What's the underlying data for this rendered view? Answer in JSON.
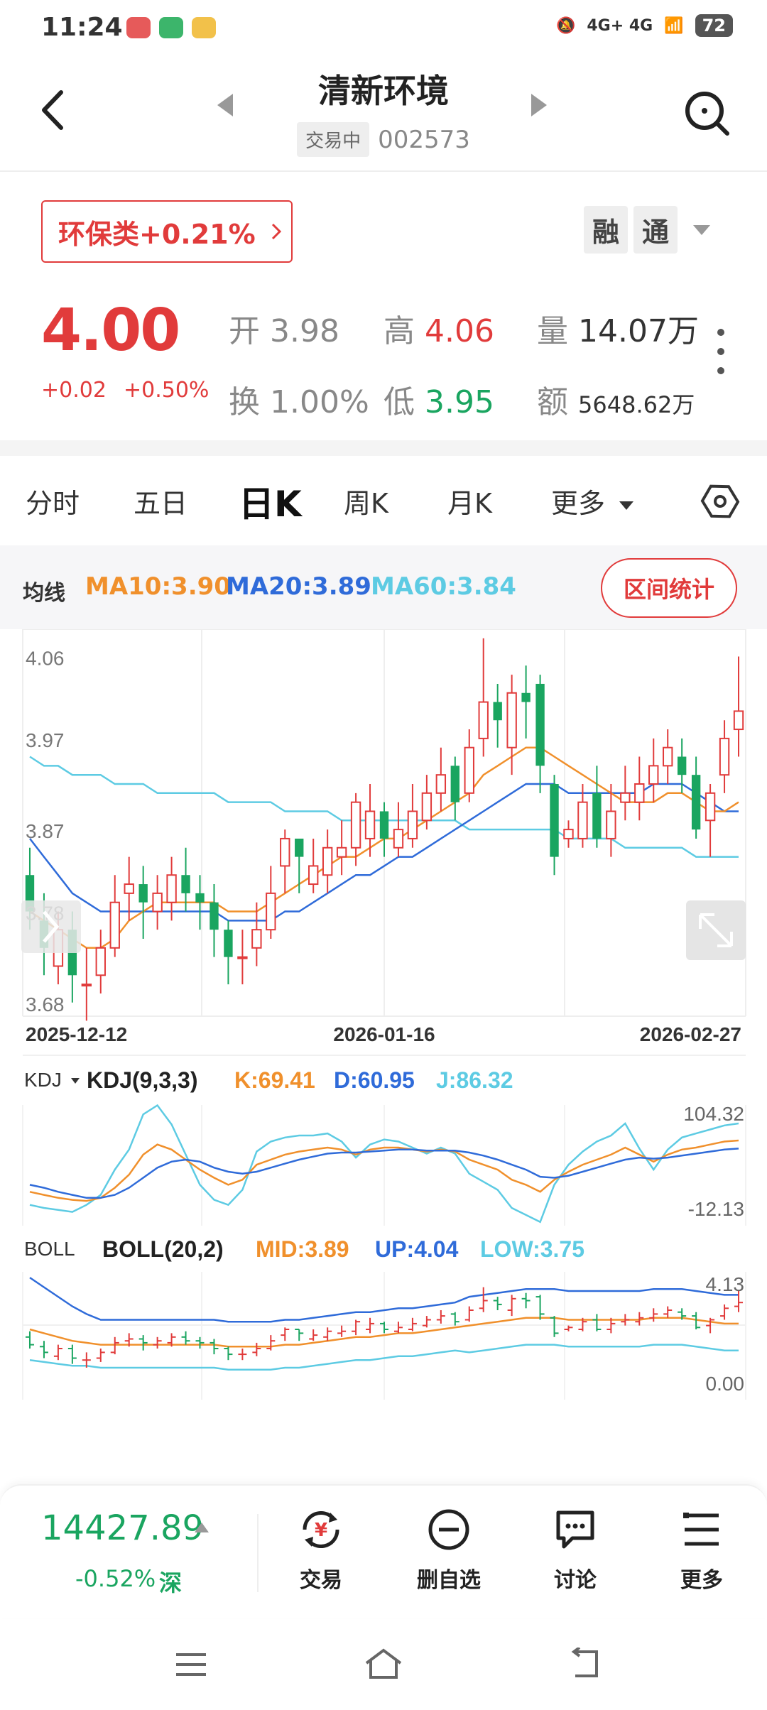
{
  "status": {
    "time": "11:24",
    "network": "4G+ 4G",
    "battery": "72"
  },
  "header": {
    "title": "清新环境",
    "badge": "交易中",
    "code": "002573"
  },
  "sector": {
    "label": "环保类+0.21%"
  },
  "badges": {
    "rong": "融",
    "tong": "通"
  },
  "quote": {
    "price": "4.00",
    "change": "+0.02",
    "change_pct": "+0.50%",
    "open_label": "开",
    "open": "3.98",
    "high_label": "高",
    "high": "4.06",
    "vol_label": "量",
    "volume": "14.07万",
    "turnover_label": "换",
    "turnover": "1.00%",
    "low_label": "低",
    "low": "3.95",
    "amt_label": "额",
    "amount": "5648.62万"
  },
  "tabs": [
    "分时",
    "五日",
    "日K",
    "周K",
    "月K",
    "更多"
  ],
  "ma": {
    "label": "均线",
    "ma10": "MA10:3.90",
    "ma20": "MA20:3.89",
    "ma60": "MA60:3.84",
    "interval_button": "区间统计"
  },
  "chart_data": {
    "type": "candlestick",
    "price_ticks": [
      "4.06",
      "3.97",
      "3.87",
      "3.78",
      "3.68"
    ],
    "dates": [
      "2025-12-12",
      "2026-01-16",
      "2026-02-27"
    ],
    "candles": [
      [
        3.82,
        3.78,
        3.85,
        3.76
      ],
      [
        3.77,
        3.74,
        3.8,
        3.71
      ],
      [
        3.72,
        3.76,
        3.78,
        3.7
      ],
      [
        3.76,
        3.71,
        3.78,
        3.68
      ],
      [
        3.7,
        3.7,
        3.74,
        3.66
      ],
      [
        3.71,
        3.74,
        3.76,
        3.69
      ],
      [
        3.74,
        3.79,
        3.82,
        3.73
      ],
      [
        3.8,
        3.81,
        3.84,
        3.77
      ],
      [
        3.81,
        3.79,
        3.83,
        3.75
      ],
      [
        3.78,
        3.8,
        3.82,
        3.76
      ],
      [
        3.79,
        3.82,
        3.84,
        3.77
      ],
      [
        3.82,
        3.8,
        3.85,
        3.78
      ],
      [
        3.8,
        3.79,
        3.82,
        3.76
      ],
      [
        3.79,
        3.76,
        3.81,
        3.73
      ],
      [
        3.76,
        3.73,
        3.77,
        3.7
      ],
      [
        3.73,
        3.73,
        3.76,
        3.7
      ],
      [
        3.74,
        3.76,
        3.79,
        3.72
      ],
      [
        3.76,
        3.8,
        3.83,
        3.75
      ],
      [
        3.83,
        3.86,
        3.87,
        3.8
      ],
      [
        3.86,
        3.84,
        3.86,
        3.8
      ],
      [
        3.81,
        3.83,
        3.86,
        3.8
      ],
      [
        3.82,
        3.85,
        3.87,
        3.8
      ],
      [
        3.84,
        3.85,
        3.88,
        3.82
      ],
      [
        3.85,
        3.9,
        3.91,
        3.83
      ],
      [
        3.86,
        3.89,
        3.92,
        3.84
      ],
      [
        3.89,
        3.86,
        3.9,
        3.84
      ],
      [
        3.85,
        3.87,
        3.9,
        3.84
      ],
      [
        3.86,
        3.89,
        3.92,
        3.85
      ],
      [
        3.88,
        3.91,
        3.93,
        3.87
      ],
      [
        3.91,
        3.93,
        3.96,
        3.89
      ],
      [
        3.94,
        3.9,
        3.95,
        3.88
      ],
      [
        3.91,
        3.96,
        3.98,
        3.9
      ],
      [
        3.97,
        4.01,
        4.08,
        3.95
      ],
      [
        4.01,
        3.99,
        4.03,
        3.96
      ],
      [
        3.96,
        4.02,
        4.04,
        3.93
      ],
      [
        4.02,
        4.01,
        4.05,
        3.97
      ],
      [
        4.03,
        3.94,
        4.04,
        3.91
      ],
      [
        3.92,
        3.84,
        3.93,
        3.82
      ],
      [
        3.86,
        3.87,
        3.88,
        3.85
      ],
      [
        3.86,
        3.9,
        3.92,
        3.85
      ],
      [
        3.91,
        3.86,
        3.94,
        3.85
      ],
      [
        3.86,
        3.89,
        3.92,
        3.84
      ],
      [
        3.9,
        3.91,
        3.94,
        3.88
      ],
      [
        3.9,
        3.92,
        3.95,
        3.88
      ],
      [
        3.92,
        3.94,
        3.97,
        3.9
      ],
      [
        3.94,
        3.96,
        3.98,
        3.92
      ],
      [
        3.95,
        3.93,
        3.97,
        3.91
      ],
      [
        3.93,
        3.87,
        3.95,
        3.86
      ],
      [
        3.88,
        3.91,
        3.92,
        3.84
      ],
      [
        3.93,
        3.97,
        3.99,
        3.91
      ],
      [
        3.98,
        4.0,
        4.06,
        3.95
      ]
    ],
    "ma10": [
      3.78,
      3.77,
      3.76,
      3.75,
      3.74,
      3.74,
      3.75,
      3.77,
      3.78,
      3.79,
      3.79,
      3.79,
      3.79,
      3.79,
      3.78,
      3.78,
      3.78,
      3.79,
      3.8,
      3.81,
      3.82,
      3.83,
      3.84,
      3.84,
      3.85,
      3.86,
      3.86,
      3.87,
      3.88,
      3.89,
      3.9,
      3.91,
      3.93,
      3.94,
      3.95,
      3.96,
      3.96,
      3.95,
      3.94,
      3.93,
      3.92,
      3.91,
      3.9,
      3.9,
      3.9,
      3.91,
      3.91,
      3.9,
      3.89,
      3.89,
      3.9
    ],
    "ma20": [
      3.86,
      3.84,
      3.82,
      3.8,
      3.79,
      3.78,
      3.78,
      3.78,
      3.78,
      3.78,
      3.78,
      3.78,
      3.78,
      3.78,
      3.77,
      3.77,
      3.77,
      3.77,
      3.78,
      3.78,
      3.79,
      3.8,
      3.81,
      3.82,
      3.82,
      3.83,
      3.84,
      3.84,
      3.85,
      3.86,
      3.87,
      3.88,
      3.89,
      3.9,
      3.91,
      3.92,
      3.92,
      3.92,
      3.91,
      3.91,
      3.91,
      3.91,
      3.91,
      3.91,
      3.92,
      3.92,
      3.92,
      3.91,
      3.9,
      3.89,
      3.89
    ],
    "ma60": [
      3.95,
      3.94,
      3.94,
      3.93,
      3.93,
      3.93,
      3.92,
      3.92,
      3.92,
      3.91,
      3.91,
      3.91,
      3.91,
      3.91,
      3.9,
      3.9,
      3.9,
      3.9,
      3.89,
      3.89,
      3.89,
      3.89,
      3.88,
      3.88,
      3.88,
      3.88,
      3.88,
      3.88,
      3.88,
      3.88,
      3.88,
      3.87,
      3.87,
      3.87,
      3.87,
      3.87,
      3.87,
      3.87,
      3.86,
      3.86,
      3.86,
      3.86,
      3.85,
      3.85,
      3.85,
      3.85,
      3.85,
      3.84,
      3.84,
      3.84,
      3.84
    ]
  },
  "kdj": {
    "selector": "KDJ",
    "name": "KDJ(9,3,3)",
    "k": "K:69.41",
    "d": "D:60.95",
    "j": "J:86.32",
    "top": "104.32",
    "bottom": "-12.13",
    "k_values": [
      18,
      15,
      12,
      10,
      9,
      12,
      22,
      35,
      55,
      65,
      60,
      50,
      40,
      32,
      25,
      30,
      45,
      50,
      55,
      58,
      60,
      62,
      60,
      55,
      60,
      62,
      62,
      60,
      58,
      60,
      58,
      50,
      45,
      40,
      30,
      25,
      18,
      30,
      38,
      45,
      50,
      55,
      62,
      55,
      48,
      55,
      60,
      62,
      65,
      68,
      69
    ],
    "d_values": [
      25,
      22,
      18,
      15,
      12,
      12,
      15,
      22,
      32,
      42,
      48,
      50,
      48,
      42,
      38,
      36,
      38,
      42,
      46,
      50,
      53,
      56,
      57,
      57,
      58,
      59,
      60,
      60,
      59,
      59,
      59,
      57,
      54,
      50,
      45,
      40,
      33,
      32,
      34,
      38,
      42,
      46,
      50,
      52,
      51,
      52,
      54,
      56,
      58,
      60,
      61
    ],
    "j_values": [
      5,
      2,
      0,
      -2,
      5,
      15,
      40,
      60,
      95,
      104,
      85,
      55,
      25,
      10,
      5,
      20,
      58,
      68,
      72,
      74,
      74,
      76,
      68,
      52,
      65,
      70,
      68,
      62,
      56,
      62,
      56,
      36,
      28,
      20,
      2,
      -5,
      -12,
      25,
      45,
      58,
      68,
      74,
      86,
      61,
      40,
      60,
      72,
      76,
      80,
      84,
      86
    ]
  },
  "boll": {
    "name_label": "BOLL",
    "name": "BOLL(20,2)",
    "mid": "MID:3.89",
    "up": "UP:4.04",
    "low": "LOW:3.75",
    "top": "4.13",
    "bottom": "0.00"
  },
  "bottom_bar": {
    "index_value": "14427.89",
    "index_change": "-0.52%",
    "index_market": "深",
    "actions": [
      "交易",
      "删自选",
      "讨论",
      "更多"
    ]
  },
  "colors": {
    "up": "#e13b3b",
    "down": "#1aa560",
    "ma10": "#f0902c",
    "ma20": "#2f6bd9",
    "ma60": "#5dcbe3"
  }
}
